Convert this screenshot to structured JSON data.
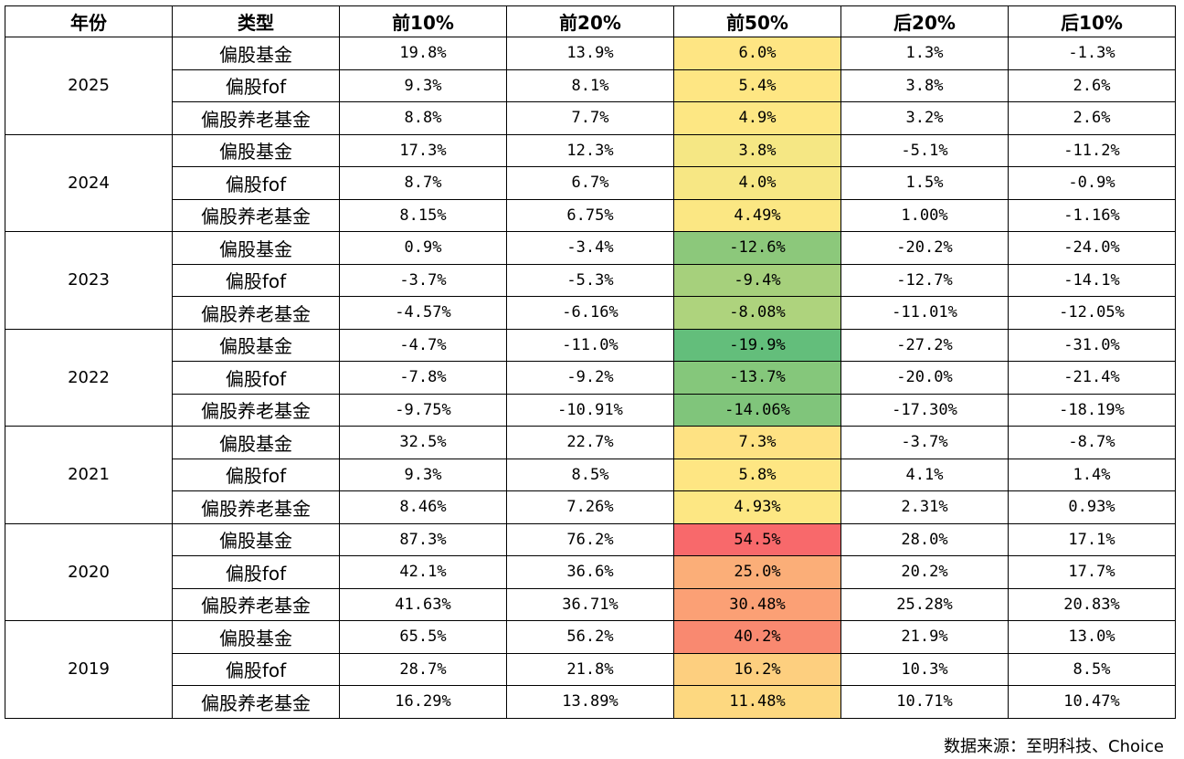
{
  "chart_data": {
    "type": "table",
    "columns": [
      "年份",
      "类型",
      "前10%",
      "前20%",
      "前50%",
      "后20%",
      "后10%"
    ],
    "heat_column": "前50%",
    "groups": [
      {
        "year": "2025",
        "rows": [
          {
            "type": "偏股基金",
            "values": [
              "19.8%",
              "13.9%",
              "6.0%",
              "1.3%",
              "-1.3%"
            ],
            "heat_color": "#fee583"
          },
          {
            "type": "偏股fof",
            "values": [
              "9.3%",
              "8.1%",
              "5.4%",
              "3.8%",
              "2.6%"
            ],
            "heat_color": "#fee683"
          },
          {
            "type": "偏股养老基金",
            "values": [
              "8.8%",
              "7.7%",
              "4.9%",
              "3.2%",
              "2.6%"
            ],
            "heat_color": "#fde783"
          }
        ]
      },
      {
        "year": "2024",
        "rows": [
          {
            "type": "偏股基金",
            "values": [
              "17.3%",
              "12.3%",
              "3.8%",
              "-5.1%",
              "-11.2%"
            ],
            "heat_color": "#f5e784"
          },
          {
            "type": "偏股fof",
            "values": [
              "8.7%",
              "6.7%",
              "4.0%",
              "1.5%",
              "-0.9%"
            ],
            "heat_color": "#f7e784"
          },
          {
            "type": "偏股养老基金",
            "values": [
              "8.15%",
              "6.75%",
              "4.49%",
              "1.00%",
              "-1.16%"
            ],
            "heat_color": "#fbe783"
          }
        ]
      },
      {
        "year": "2023",
        "rows": [
          {
            "type": "偏股基金",
            "values": [
              "0.9%",
              "-3.4%",
              "-12.6%",
              "-20.2%",
              "-24.0%"
            ],
            "heat_color": "#8cc87b"
          },
          {
            "type": "偏股fof",
            "values": [
              "-3.7%",
              "-5.3%",
              "-9.4%",
              "-12.7%",
              "-14.1%"
            ],
            "heat_color": "#a6d07c"
          },
          {
            "type": "偏股养老基金",
            "values": [
              "-4.57%",
              "-6.16%",
              "-8.08%",
              "-11.01%",
              "-12.05%"
            ],
            "heat_color": "#aed37d"
          }
        ]
      },
      {
        "year": "2022",
        "rows": [
          {
            "type": "偏股基金",
            "values": [
              "-4.7%",
              "-11.0%",
              "-19.9%",
              "-27.2%",
              "-31.0%"
            ],
            "heat_color": "#63be7b"
          },
          {
            "type": "偏股fof",
            "values": [
              "-7.8%",
              "-9.2%",
              "-13.7%",
              "-20.0%",
              "-21.4%"
            ],
            "heat_color": "#85c77b"
          },
          {
            "type": "偏股养老基金",
            "values": [
              "-9.75%",
              "-10.91%",
              "-14.06%",
              "-17.30%",
              "-18.19%"
            ],
            "heat_color": "#80c57b"
          }
        ]
      },
      {
        "year": "2021",
        "rows": [
          {
            "type": "偏股基金",
            "values": [
              "32.5%",
              "22.7%",
              "7.3%",
              "-3.7%",
              "-8.7%"
            ],
            "heat_color": "#fee283"
          },
          {
            "type": "偏股fof",
            "values": [
              "9.3%",
              "8.5%",
              "5.8%",
              "4.1%",
              "1.4%"
            ],
            "heat_color": "#fee683"
          },
          {
            "type": "偏股养老基金",
            "values": [
              "8.46%",
              "7.26%",
              "4.93%",
              "2.31%",
              "0.93%"
            ],
            "heat_color": "#fde783"
          }
        ]
      },
      {
        "year": "2020",
        "rows": [
          {
            "type": "偏股基金",
            "values": [
              "87.3%",
              "76.2%",
              "54.5%",
              "28.0%",
              "17.1%"
            ],
            "heat_color": "#f8696b"
          },
          {
            "type": "偏股fof",
            "values": [
              "42.1%",
              "36.6%",
              "25.0%",
              "20.2%",
              "17.7%"
            ],
            "heat_color": "#fbae78"
          },
          {
            "type": "偏股养老基金",
            "values": [
              "41.63%",
              "36.71%",
              "30.48%",
              "25.28%",
              "20.83%"
            ],
            "heat_color": "#fba075"
          }
        ]
      },
      {
        "year": "2019",
        "rows": [
          {
            "type": "偏股基金",
            "values": [
              "65.5%",
              "56.2%",
              "40.2%",
              "21.9%",
              "13.0%"
            ],
            "heat_color": "#f98970"
          },
          {
            "type": "偏股fof",
            "values": [
              "28.7%",
              "21.8%",
              "16.2%",
              "10.3%",
              "8.5%"
            ],
            "heat_color": "#fdcf7f"
          },
          {
            "type": "偏股养老基金",
            "values": [
              "16.29%",
              "13.89%",
              "11.48%",
              "10.71%",
              "10.47%"
            ],
            "heat_color": "#fdd880"
          }
        ]
      }
    ]
  },
  "source_note": "数据来源：至明科技、Choice"
}
